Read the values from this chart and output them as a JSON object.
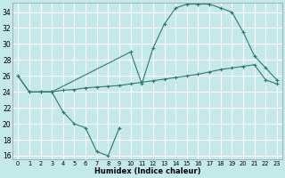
{
  "xlabel": "Humidex (Indice chaleur)",
  "bg_color": "#c5e8e8",
  "grid_color": "#ffffff",
  "line_color": "#2d7a72",
  "xlim_min": -0.5,
  "xlim_max": 23.5,
  "ylim_min": 15.5,
  "ylim_max": 35.2,
  "yticks": [
    16,
    18,
    20,
    22,
    24,
    26,
    28,
    30,
    32,
    34
  ],
  "xticks": [
    0,
    1,
    2,
    3,
    4,
    5,
    6,
    7,
    8,
    9,
    10,
    11,
    12,
    13,
    14,
    15,
    16,
    17,
    18,
    19,
    20,
    21,
    22,
    23
  ],
  "series1_x": [
    0,
    1,
    2,
    3,
    4,
    5,
    6,
    7,
    8,
    9,
    10,
    11,
    12,
    13,
    14,
    15,
    16,
    17,
    18,
    19,
    20,
    21,
    22,
    23
  ],
  "series1_y": [
    26.0,
    24.0,
    24.0,
    24.0,
    24.2,
    24.3,
    24.5,
    24.6,
    24.7,
    24.8,
    25.0,
    25.2,
    25.4,
    25.6,
    25.8,
    26.0,
    26.2,
    26.5,
    26.8,
    27.0,
    27.2,
    27.4,
    25.5,
    25.0
  ],
  "series2_x": [
    0,
    1,
    2,
    3,
    10,
    11,
    12,
    13,
    14,
    15,
    16,
    17,
    18,
    19,
    20,
    21,
    22,
    23
  ],
  "series2_y": [
    26.0,
    24.0,
    24.0,
    24.0,
    29.0,
    25.0,
    29.5,
    32.5,
    34.5,
    35.0,
    35.0,
    35.0,
    34.5,
    34.0,
    31.5,
    28.5,
    27.0,
    25.5
  ],
  "series3_x": [
    2,
    3,
    4,
    5,
    6,
    7,
    8,
    9
  ],
  "series3_y": [
    24.0,
    24.0,
    21.5,
    20.0,
    19.5,
    16.5,
    16.0,
    19.5
  ]
}
